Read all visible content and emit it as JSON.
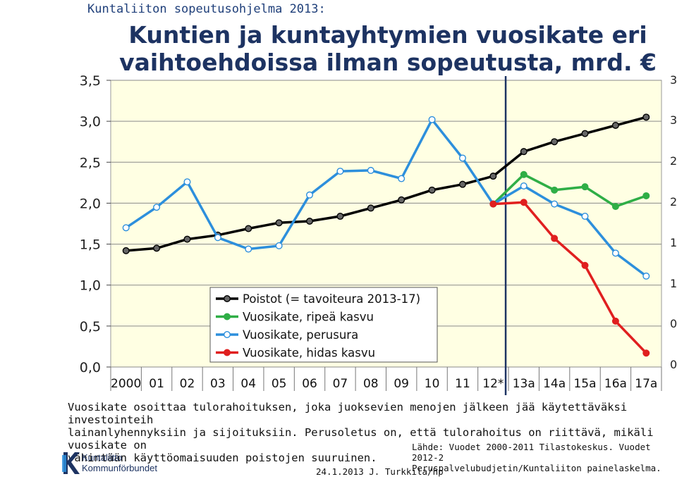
{
  "header": {
    "topline": "Kuntaliiton sopeutusohjelma 2013:",
    "title": "Kuntien ja kuntayhtymien vuosikate eri vaihtoehdoissa ilman sopeutusta, mrd. €"
  },
  "chart_data": {
    "type": "line",
    "categories": [
      "2000",
      "01",
      "02",
      "03",
      "04",
      "05",
      "06",
      "07",
      "08",
      "09",
      "10",
      "11",
      "12*",
      "13a",
      "14a",
      "15a",
      "16a",
      "17a"
    ],
    "ylim": [
      0,
      3.5
    ],
    "yticks": [
      "0,0",
      "0,5",
      "1,0",
      "1,5",
      "2,0",
      "2,5",
      "3,0",
      "3,5"
    ],
    "grid": true,
    "legend_position": "bottom-left",
    "series": [
      {
        "name": "Poistot (= tavoiteura 2013-17)",
        "color": "#000000",
        "marker": "filled-grey",
        "values": [
          1.42,
          1.45,
          1.56,
          1.61,
          1.69,
          1.76,
          1.78,
          1.84,
          1.94,
          2.04,
          2.16,
          2.23,
          2.33,
          2.63,
          2.75,
          2.85,
          2.95,
          3.05
        ]
      },
      {
        "name": "Vuosikate, ripeä kasvu",
        "color": "#2fae46",
        "marker": "filled-green",
        "values": [
          null,
          null,
          null,
          null,
          null,
          null,
          null,
          null,
          null,
          null,
          null,
          null,
          1.99,
          2.35,
          2.16,
          2.2,
          1.96,
          2.09
        ]
      },
      {
        "name": "Vuosikate, perusura",
        "color": "#2d8fdc",
        "marker": "open-white",
        "values": [
          1.7,
          1.95,
          2.26,
          1.58,
          1.44,
          1.48,
          2.1,
          2.39,
          2.4,
          2.3,
          3.02,
          2.55,
          1.99,
          2.21,
          1.99,
          1.84,
          1.39,
          1.11
        ]
      },
      {
        "name": "Vuosikate, hidas kasvu",
        "color": "#e01f1f",
        "marker": "filled-red",
        "values": [
          null,
          null,
          null,
          null,
          null,
          null,
          null,
          null,
          null,
          null,
          null,
          null,
          1.99,
          2.01,
          1.57,
          1.24,
          0.56,
          0.17
        ]
      }
    ]
  },
  "caption": "Vuosikate  osoittaa tulorahoituksen, joka juoksevien menojen jälkeen jää käytettäväksi investointeih\nlainanlyhennyksiin ja sijoituksiin. Perusoletus on, että tulorahoitus on riittävä, mikäli vuosikate on\nvähintään käyttöomaisuuden poistojen suuruinen.",
  "source": "Lähde: Vuodet 2000-2011 Tilastokeskus. Vuodet 2012-2\nPeruspalvelubudjetin/Kuntaliiton painelaskelma.",
  "footer": {
    "date": "24.1.2013 J. Turkkila/hp",
    "logo_text": "Kuntaliitto\nKommunförbundet"
  },
  "right_axis_fragments": [
    "3",
    "3",
    "2",
    "2",
    "1",
    "1",
    "0",
    "0"
  ]
}
